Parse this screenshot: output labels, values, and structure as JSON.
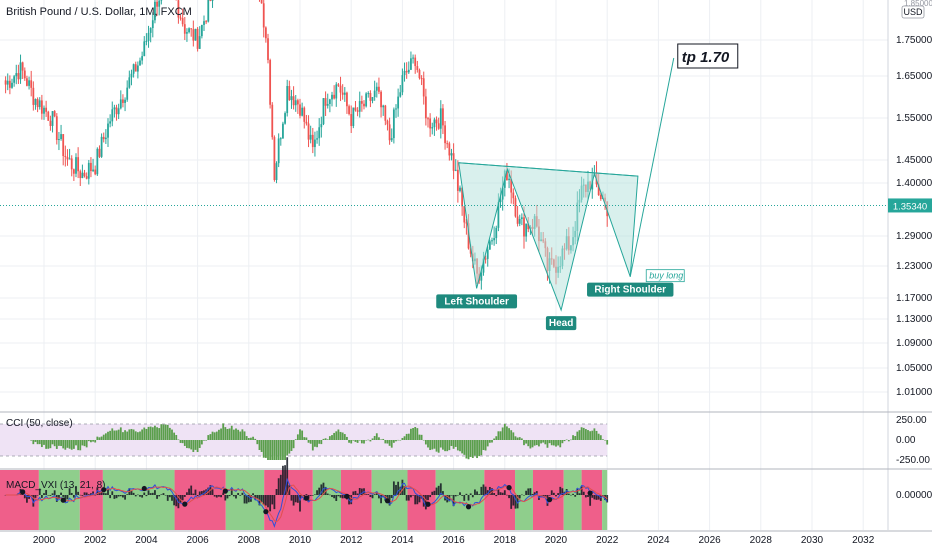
{
  "header": {
    "title": "British Pound / U.S. Dollar, 1M, FXCM"
  },
  "colors": {
    "up": "#26a69a",
    "down": "#ef5350",
    "pattern_fill": "#b9e4df",
    "pattern_stroke": "#26a69a",
    "label_bg": "#1e8a7e",
    "cci": "#5a9e4b",
    "cci_band": "#efe3f5",
    "macd_red": "#ef5f8a",
    "macd_green": "#8fce8c",
    "macd_fast": "#3050d8",
    "macd_slow": "#e24f4f",
    "grid": "#eceff3",
    "axis_text": "#131722"
  },
  "chart_data": [
    {
      "type": "candlestick",
      "title": "British Pound / U.S. Dollar, 1M, FXCM",
      "x_ticks": [
        "2000",
        "2002",
        "2004",
        "2006",
        "2008",
        "2010",
        "2012",
        "2014",
        "2016",
        "2018",
        "2020",
        "2022",
        "2024",
        "2026",
        "2028",
        "2030",
        "2032"
      ],
      "y_ticks": [
        "1.75000",
        "1.65000",
        "1.55000",
        "1.45000",
        "1.40000",
        "1.29000",
        "1.23000",
        "1.17000",
        "1.13000",
        "1.09000",
        "1.05000",
        "1.01000"
      ],
      "y_axis_top_partial": "1.85000",
      "currency_badge": "USD",
      "price_line": {
        "label": "1.35340",
        "value": 1.3534
      },
      "price_path": [
        [
          1998.5,
          1.63
        ],
        [
          1999.1,
          1.67
        ],
        [
          1999.6,
          1.6
        ],
        [
          2000.3,
          1.55
        ],
        [
          2000.9,
          1.45
        ],
        [
          2001.5,
          1.42
        ],
        [
          2002.0,
          1.44
        ],
        [
          2002.6,
          1.55
        ],
        [
          2003.2,
          1.62
        ],
        [
          2003.8,
          1.7
        ],
        [
          2004.4,
          1.85
        ],
        [
          2004.9,
          1.9
        ],
        [
          2005.5,
          1.78
        ],
        [
          2006.0,
          1.75
        ],
        [
          2006.6,
          1.87
        ],
        [
          2007.2,
          1.97
        ],
        [
          2007.8,
          2.03
        ],
        [
          2008.2,
          1.98
        ],
        [
          2008.7,
          1.75
        ],
        [
          2009.0,
          1.42
        ],
        [
          2009.5,
          1.62
        ],
        [
          2010.0,
          1.58
        ],
        [
          2010.5,
          1.47
        ],
        [
          2011.0,
          1.6
        ],
        [
          2011.5,
          1.63
        ],
        [
          2012.0,
          1.55
        ],
        [
          2012.5,
          1.58
        ],
        [
          2013.0,
          1.61
        ],
        [
          2013.5,
          1.5
        ],
        [
          2014.0,
          1.64
        ],
        [
          2014.5,
          1.7
        ],
        [
          2015.0,
          1.54
        ],
        [
          2015.5,
          1.55
        ],
        [
          2016.0,
          1.44
        ],
        [
          2016.5,
          1.3
        ],
        [
          2016.9,
          1.21
        ],
        [
          2017.5,
          1.29
        ],
        [
          2018.1,
          1.43
        ],
        [
          2018.6,
          1.31
        ],
        [
          2019.2,
          1.32
        ],
        [
          2019.7,
          1.22
        ],
        [
          2020.2,
          1.25
        ],
        [
          2020.6,
          1.28
        ],
        [
          2021.0,
          1.38
        ],
        [
          2021.4,
          1.41
        ],
        [
          2021.8,
          1.37
        ],
        [
          2022.0,
          1.35
        ]
      ],
      "pattern": {
        "neckline": [
          [
            2016.2,
            1.444
          ],
          [
            2023.2,
            1.415
          ]
        ],
        "points": [
          [
            2016.2,
            1.444
          ],
          [
            2016.9,
            1.188
          ],
          [
            2018.1,
            1.43
          ],
          [
            2020.2,
            1.147
          ],
          [
            2021.5,
            1.42
          ],
          [
            2022.9,
            1.21
          ],
          [
            2023.2,
            1.415
          ]
        ],
        "projection": [
          [
            2022.9,
            1.21
          ],
          [
            2024.6,
            1.7
          ]
        ]
      },
      "annotations": {
        "left_shoulder": "Left Shoulder",
        "head": "Head",
        "right_shoulder": "Right Shoulder",
        "buy_long": "buy long",
        "target": "tp  1.70"
      }
    },
    {
      "type": "histogram",
      "name": "CCI (50, close)",
      "y_ticks": [
        "250.00",
        "0.00",
        "-250.00"
      ],
      "upper_band": 200,
      "lower_band": -200
    },
    {
      "type": "histogram",
      "name": "MACD_VXI (13, 21, 8)",
      "y_ticks": [
        "0.00000"
      ],
      "regime_segments": [
        [
          1998.0,
          1999.8,
          "red"
        ],
        [
          1999.8,
          2001.4,
          "green"
        ],
        [
          2001.4,
          2002.3,
          "red"
        ],
        [
          2002.3,
          2005.1,
          "green"
        ],
        [
          2005.1,
          2007.1,
          "red"
        ],
        [
          2007.1,
          2008.6,
          "green"
        ],
        [
          2008.6,
          2010.5,
          "red"
        ],
        [
          2010.5,
          2011.6,
          "green"
        ],
        [
          2011.6,
          2012.8,
          "red"
        ],
        [
          2012.8,
          2014.2,
          "green"
        ],
        [
          2014.2,
          2015.3,
          "red"
        ],
        [
          2015.3,
          2017.2,
          "green"
        ],
        [
          2017.2,
          2018.4,
          "red"
        ],
        [
          2018.4,
          2019.1,
          "green"
        ],
        [
          2019.1,
          2020.3,
          "red"
        ],
        [
          2020.3,
          2021.0,
          "green"
        ],
        [
          2021.0,
          2021.8,
          "red"
        ],
        [
          2021.8,
          2022.0,
          "green"
        ]
      ]
    }
  ]
}
